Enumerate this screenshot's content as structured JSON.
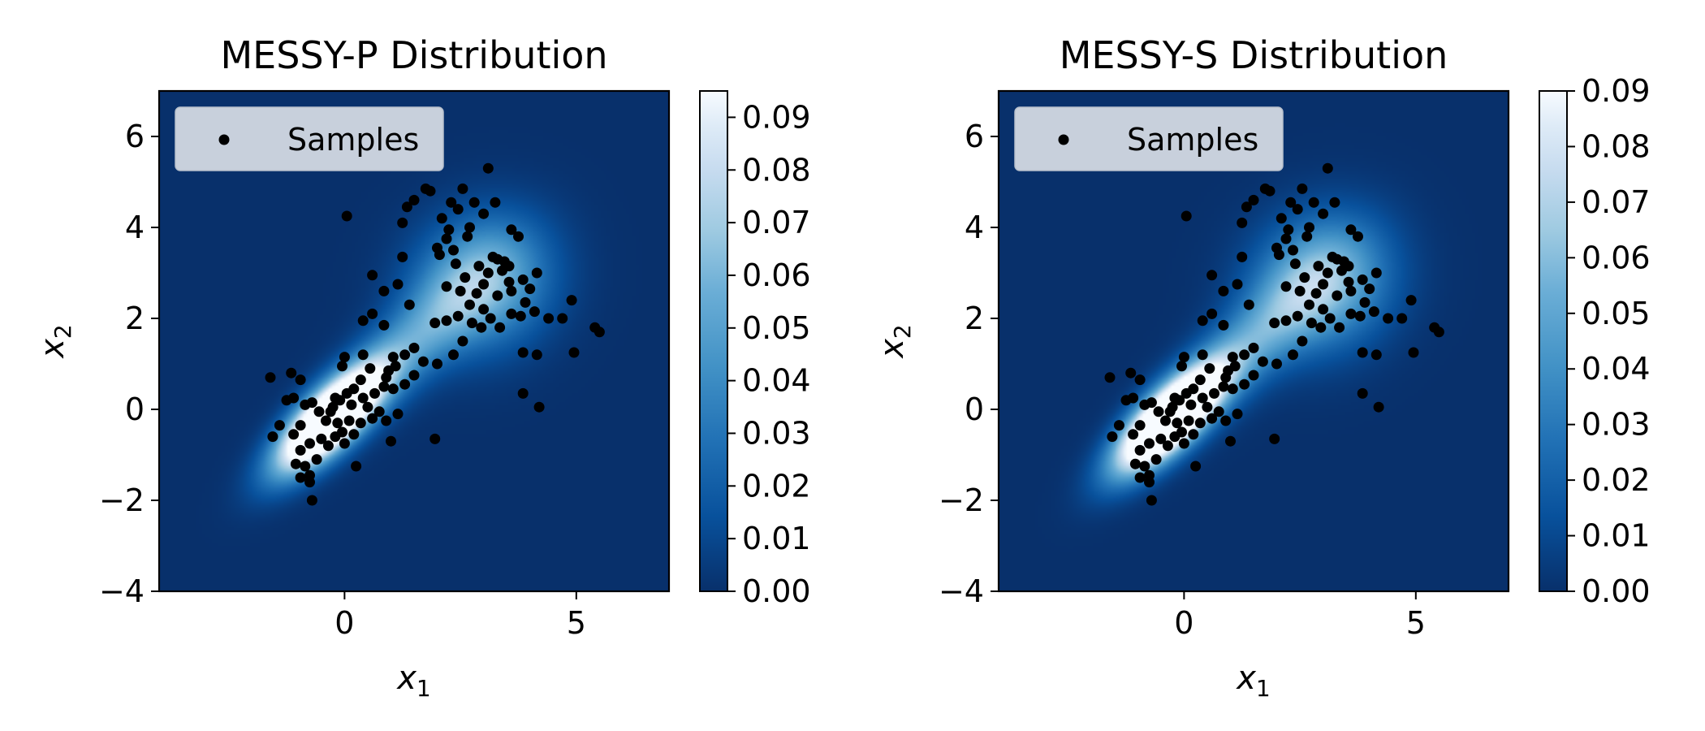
{
  "chart_data": [
    {
      "type": "heatmap",
      "title": "MESSY-P Distribution",
      "xlabel": "x",
      "xlabel_sub": "1",
      "ylabel": "x",
      "ylabel_sub": "2",
      "xlim": [
        -4,
        7
      ],
      "ylim": [
        -4,
        7
      ],
      "xticks": [
        0,
        5
      ],
      "yticks": [
        -4,
        -2,
        0,
        2,
        4,
        6
      ],
      "colormap": "Blues_r",
      "colorbar": {
        "range": [
          0,
          0.095
        ],
        "ticks": [
          "0.00",
          "0.01",
          "0.02",
          "0.03",
          "0.04",
          "0.05",
          "0.06",
          "0.07",
          "0.08",
          "0.09"
        ],
        "tick_values": [
          0,
          0.01,
          0.02,
          0.03,
          0.04,
          0.05,
          0.06,
          0.07,
          0.08,
          0.09
        ]
      },
      "legend": {
        "label": "Samples",
        "placement": "upper left"
      },
      "density_components": [
        {
          "mean": [
            -0.3,
            -0.2
          ],
          "cov": [
            [
              0.6,
              0.45
            ],
            [
              0.45,
              0.6
            ]
          ],
          "weight": 0.45
        },
        {
          "mean": [
            1.5,
            1.5
          ],
          "cov": [
            [
              1.3,
              1.0
            ],
            [
              1.0,
              1.3
            ]
          ],
          "weight": 0.2
        },
        {
          "mean": [
            3.0,
            2.8
          ],
          "cov": [
            [
              1.0,
              0.1
            ],
            [
              0.1,
              1.0
            ]
          ],
          "weight": 0.35
        }
      ],
      "series_ref": "samples"
    },
    {
      "type": "heatmap",
      "title": "MESSY-S Distribution",
      "xlabel": "x",
      "xlabel_sub": "1",
      "ylabel": "x",
      "ylabel_sub": "2",
      "xlim": [
        -4,
        7
      ],
      "ylim": [
        -4,
        7
      ],
      "xticks": [
        0,
        5
      ],
      "yticks": [
        -4,
        -2,
        0,
        2,
        4,
        6
      ],
      "colormap": "Blues_r",
      "colorbar": {
        "range": [
          0,
          0.09
        ],
        "ticks": [
          "0.00",
          "0.01",
          "0.02",
          "0.03",
          "0.04",
          "0.05",
          "0.06",
          "0.07",
          "0.08",
          "0.09"
        ],
        "tick_values": [
          0,
          0.01,
          0.02,
          0.03,
          0.04,
          0.05,
          0.06,
          0.07,
          0.08,
          0.09
        ]
      },
      "legend": {
        "label": "Samples",
        "placement": "upper left"
      },
      "density_components": [
        {
          "mean": [
            -0.3,
            -0.2
          ],
          "cov": [
            [
              0.6,
              0.45
            ],
            [
              0.45,
              0.6
            ]
          ],
          "weight": 0.45
        },
        {
          "mean": [
            1.5,
            1.5
          ],
          "cov": [
            [
              1.3,
              1.0
            ],
            [
              1.0,
              1.3
            ]
          ],
          "weight": 0.2
        },
        {
          "mean": [
            3.0,
            2.8
          ],
          "cov": [
            [
              1.0,
              0.1
            ],
            [
              0.1,
              1.0
            ]
          ],
          "weight": 0.35
        }
      ],
      "series_ref": "samples"
    }
  ],
  "samples": [
    [
      0.05,
      4.25
    ],
    [
      3.1,
      5.3
    ],
    [
      2.55,
      4.85
    ],
    [
      1.75,
      4.85
    ],
    [
      1.85,
      4.8
    ],
    [
      1.5,
      4.6
    ],
    [
      1.35,
      4.45
    ],
    [
      2.3,
      4.55
    ],
    [
      2.45,
      4.4
    ],
    [
      2.1,
      4.2
    ],
    [
      1.25,
      4.1
    ],
    [
      2.8,
      4.55
    ],
    [
      3.25,
      4.55
    ],
    [
      3.0,
      4.3
    ],
    [
      2.7,
      4.0
    ],
    [
      2.25,
      3.95
    ],
    [
      2.65,
      3.8
    ],
    [
      3.6,
      3.95
    ],
    [
      3.75,
      3.8
    ],
    [
      2.2,
      3.75
    ],
    [
      2.0,
      3.55
    ],
    [
      2.35,
      3.5
    ],
    [
      1.25,
      3.35
    ],
    [
      3.3,
      3.3
    ],
    [
      3.45,
      3.25
    ],
    [
      3.4,
      3.05
    ],
    [
      3.55,
      3.15
    ],
    [
      2.05,
      3.4
    ],
    [
      2.4,
      3.2
    ],
    [
      2.9,
      3.15
    ],
    [
      3.1,
      3.0
    ],
    [
      3.0,
      2.75
    ],
    [
      2.85,
      2.55
    ],
    [
      3.3,
      2.5
    ],
    [
      3.55,
      2.8
    ],
    [
      3.6,
      2.6
    ],
    [
      3.85,
      2.85
    ],
    [
      4.0,
      2.65
    ],
    [
      4.15,
      3.0
    ],
    [
      3.9,
      2.35
    ],
    [
      4.1,
      2.15
    ],
    [
      4.4,
      2.0
    ],
    [
      4.7,
      2.0
    ],
    [
      4.9,
      2.4
    ],
    [
      5.4,
      1.8
    ],
    [
      5.5,
      1.7
    ],
    [
      4.95,
      1.25
    ],
    [
      4.15,
      1.2
    ],
    [
      3.85,
      1.25
    ],
    [
      3.85,
      0.35
    ],
    [
      4.2,
      0.05
    ],
    [
      0.6,
      2.95
    ],
    [
      0.85,
      2.6
    ],
    [
      1.4,
      2.3
    ],
    [
      0.6,
      2.1
    ],
    [
      0.4,
      1.95
    ],
    [
      1.15,
      2.75
    ],
    [
      2.2,
      2.7
    ],
    [
      2.5,
      2.6
    ],
    [
      2.7,
      2.3
    ],
    [
      2.45,
      2.05
    ],
    [
      2.2,
      1.95
    ],
    [
      1.95,
      1.9
    ],
    [
      2.75,
      1.9
    ],
    [
      2.95,
      1.8
    ],
    [
      3.15,
      2.0
    ],
    [
      3.35,
      1.8
    ],
    [
      3.6,
      2.1
    ],
    [
      3.8,
      2.05
    ],
    [
      3.0,
      2.2
    ],
    [
      0.4,
      1.2
    ],
    [
      0.0,
      1.15
    ],
    [
      -0.05,
      0.95
    ],
    [
      0.85,
      1.85
    ],
    [
      1.3,
      1.2
    ],
    [
      1.5,
      1.35
    ],
    [
      1.7,
      1.05
    ],
    [
      2.0,
      1.0
    ],
    [
      2.35,
      1.2
    ],
    [
      2.55,
      1.5
    ],
    [
      1.1,
      0.95
    ],
    [
      0.9,
      0.7
    ],
    [
      0.55,
      0.9
    ],
    [
      0.35,
      0.65
    ],
    [
      0.2,
      0.45
    ],
    [
      0.05,
      0.35
    ],
    [
      -0.1,
      0.2
    ],
    [
      -0.25,
      0.05
    ],
    [
      0.15,
      0.1
    ],
    [
      0.4,
      0.25
    ],
    [
      0.65,
      0.35
    ],
    [
      0.85,
      0.5
    ],
    [
      1.05,
      0.45
    ],
    [
      1.3,
      0.55
    ],
    [
      1.5,
      0.75
    ],
    [
      0.75,
      -0.05
    ],
    [
      0.6,
      -0.2
    ],
    [
      0.9,
      -0.25
    ],
    [
      1.15,
      -0.1
    ],
    [
      0.35,
      -0.3
    ],
    [
      0.1,
      -0.25
    ],
    [
      -0.15,
      -0.3
    ],
    [
      -0.4,
      -0.25
    ],
    [
      -0.55,
      -0.05
    ],
    [
      -0.7,
      0.15
    ],
    [
      -0.85,
      0.1
    ],
    [
      -1.1,
      0.25
    ],
    [
      -1.25,
      0.2
    ],
    [
      -0.95,
      -0.35
    ],
    [
      -1.1,
      -0.55
    ],
    [
      -1.4,
      -0.35
    ],
    [
      -1.55,
      -0.6
    ],
    [
      -1.6,
      0.7
    ],
    [
      -1.15,
      0.8
    ],
    [
      -0.95,
      0.65
    ],
    [
      -0.95,
      -0.9
    ],
    [
      -0.75,
      -0.75
    ],
    [
      -0.5,
      -0.65
    ],
    [
      -0.35,
      -0.8
    ],
    [
      -0.2,
      -0.6
    ],
    [
      0.0,
      -0.75
    ],
    [
      0.2,
      -0.55
    ],
    [
      -0.6,
      -1.1
    ],
    [
      -0.85,
      -1.25
    ],
    [
      -1.05,
      -1.2
    ],
    [
      -0.95,
      -1.5
    ],
    [
      -0.75,
      -1.45
    ],
    [
      -0.75,
      -1.6
    ],
    [
      -0.7,
      -2.0
    ],
    [
      0.25,
      -1.25
    ],
    [
      1.0,
      -0.7
    ],
    [
      1.95,
      -0.65
    ],
    [
      -0.05,
      -0.5
    ],
    [
      -0.3,
      -0.05
    ],
    [
      0.5,
      0.05
    ],
    [
      1.05,
      1.15
    ],
    [
      0.95,
      0.85
    ],
    [
      -0.2,
      0.25
    ],
    [
      3.2,
      3.35
    ],
    [
      2.6,
      2.9
    ]
  ]
}
